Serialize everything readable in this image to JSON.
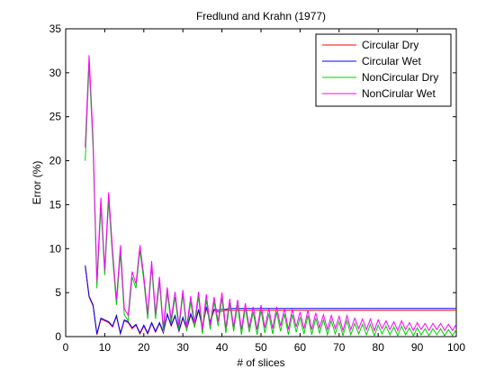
{
  "chart_data": {
    "type": "line",
    "title": "Fredlund and Krahn (1977)",
    "xlabel": "# of slices",
    "ylabel": "Error (%)",
    "xlim": [
      0,
      100
    ],
    "ylim": [
      0,
      35
    ],
    "xticks": [
      0,
      10,
      20,
      30,
      40,
      50,
      60,
      70,
      80,
      90,
      100
    ],
    "yticks": [
      0,
      5,
      10,
      15,
      20,
      25,
      30,
      35
    ],
    "grid": false,
    "legend_position": "top-right",
    "x": [
      5,
      6,
      7,
      8,
      9,
      10,
      11,
      12,
      13,
      14,
      15,
      16,
      17,
      18,
      19,
      20,
      21,
      22,
      23,
      24,
      25,
      26,
      27,
      28,
      29,
      30,
      31,
      32,
      33,
      34,
      35,
      36,
      37,
      38,
      39,
      40,
      41,
      42,
      43,
      44,
      45,
      46,
      47,
      48,
      49,
      50,
      51,
      52,
      53,
      54,
      55,
      56,
      57,
      58,
      59,
      60,
      61,
      62,
      63,
      64,
      65,
      66,
      67,
      68,
      69,
      70,
      71,
      72,
      73,
      74,
      75,
      76,
      77,
      78,
      79,
      80,
      81,
      82,
      83,
      84,
      85,
      86,
      87,
      88,
      89,
      90,
      91,
      92,
      93,
      94,
      95,
      96,
      97,
      98,
      99,
      100
    ],
    "series": [
      {
        "name": "Circular Dry",
        "color": "#ff0000",
        "values": [
          8.0,
          4.5,
          3.5,
          0.2,
          2.0,
          1.8,
          1.6,
          1.1,
          2.3,
          0.3,
          1.8,
          1.6,
          0.9,
          1.3,
          0.3,
          1.2,
          0.3,
          1.5,
          0.5,
          1.5,
          0.4,
          2.5,
          1.2,
          2.3,
          0.6,
          2.1,
          0.8,
          2.5,
          1.2,
          3.0,
          0.9,
          3.3,
          1.6,
          3.0,
          2.8,
          2.9,
          3.0,
          3.0,
          3.0,
          3.0,
          3.0,
          3.0,
          3.0,
          3.0,
          3.0,
          3.0,
          3.0,
          3.0,
          3.0,
          3.0,
          3.0,
          3.0,
          3.0,
          3.0,
          3.0,
          3.0,
          3.0,
          3.0,
          3.0,
          3.0,
          3.0,
          3.0,
          3.0,
          3.0,
          3.0,
          3.0,
          3.0,
          3.0,
          3.0,
          3.0,
          3.0,
          3.0,
          3.0,
          3.0,
          3.0,
          3.0,
          3.0,
          3.0,
          3.0,
          3.0,
          3.0,
          3.0,
          3.0,
          3.0,
          3.0,
          3.0,
          3.0,
          3.0,
          3.0,
          3.0,
          3.0,
          3.0,
          3.0,
          3.0,
          3.0,
          3.0
        ]
      },
      {
        "name": "Circular Wet",
        "color": "#0000ff",
        "values": [
          8.1,
          4.6,
          3.6,
          0.3,
          2.1,
          1.9,
          1.7,
          1.2,
          2.4,
          0.4,
          1.9,
          1.7,
          1.0,
          1.4,
          0.4,
          1.3,
          0.4,
          1.6,
          0.6,
          1.6,
          0.5,
          2.6,
          1.3,
          2.4,
          0.7,
          2.2,
          0.9,
          2.6,
          1.3,
          3.1,
          1.0,
          3.4,
          1.7,
          3.1,
          3.0,
          3.1,
          3.1,
          3.2,
          3.2,
          3.2,
          3.2,
          3.2,
          3.2,
          3.2,
          3.2,
          3.2,
          3.2,
          3.2,
          3.2,
          3.2,
          3.2,
          3.2,
          3.2,
          3.2,
          3.2,
          3.2,
          3.2,
          3.2,
          3.2,
          3.2,
          3.2,
          3.2,
          3.2,
          3.2,
          3.2,
          3.2,
          3.2,
          3.2,
          3.2,
          3.2,
          3.2,
          3.2,
          3.2,
          3.2,
          3.2,
          3.2,
          3.2,
          3.2,
          3.2,
          3.2,
          3.2,
          3.2,
          3.2,
          3.2,
          3.2,
          3.2,
          3.2,
          3.2,
          3.2,
          3.2,
          3.2,
          3.2,
          3.2,
          3.2,
          3.2,
          3.2
        ]
      },
      {
        "name": "NonCircular Dry",
        "color": "#00cc00",
        "values": [
          20.0,
          31.0,
          21.5,
          5.5,
          14.8,
          7.0,
          15.5,
          9.0,
          3.6,
          9.5,
          2.5,
          1.8,
          6.8,
          5.5,
          9.8,
          6.3,
          2.0,
          8.0,
          2.0,
          6.2,
          0.5,
          5.0,
          1.5,
          4.5,
          0.8,
          4.8,
          0.6,
          4.0,
          1.0,
          4.6,
          0.3,
          4.2,
          0.8,
          4.0,
          1.2,
          4.4,
          0.4,
          3.8,
          0.6,
          3.6,
          0.2,
          3.3,
          0.5,
          2.8,
          0.2,
          3.0,
          0.4,
          2.6,
          0.3,
          2.8,
          0.6,
          2.6,
          0.2,
          2.5,
          0.5,
          2.2,
          0.3,
          2.4,
          0.2,
          2.1,
          0.4,
          1.9,
          0.2,
          1.8,
          0.3,
          1.7,
          0.1,
          1.8,
          0.2,
          1.5,
          0.3,
          1.4,
          0.2,
          1.4,
          0.1,
          1.3,
          0.3,
          1.2,
          0.2,
          1.1,
          0.1,
          1.2,
          0.2,
          1.0,
          0.1,
          1.0,
          0.2,
          0.9,
          0.1,
          0.9,
          0.2,
          0.9,
          0.1,
          0.8,
          0.1,
          0.8
        ]
      },
      {
        "name": "NonCirular Wet",
        "color": "#ff00ff",
        "values": [
          21.5,
          32.0,
          22.5,
          6.3,
          15.8,
          7.6,
          16.4,
          9.8,
          4.2,
          10.4,
          3.2,
          2.4,
          7.4,
          6.0,
          10.4,
          6.9,
          2.6,
          8.6,
          2.6,
          6.8,
          1.0,
          5.6,
          2.0,
          5.1,
          1.3,
          5.3,
          1.1,
          4.6,
          1.5,
          5.1,
          0.8,
          4.8,
          1.3,
          4.5,
          1.7,
          5.0,
          1.0,
          4.3,
          1.1,
          4.2,
          0.8,
          3.8,
          1.0,
          3.4,
          0.8,
          3.6,
          1.0,
          3.2,
          0.9,
          3.4,
          1.2,
          3.2,
          0.8,
          3.1,
          1.1,
          2.8,
          0.9,
          3.0,
          0.8,
          2.7,
          1.0,
          2.5,
          0.8,
          2.4,
          0.9,
          2.3,
          0.7,
          2.4,
          0.8,
          2.1,
          0.9,
          2.0,
          0.8,
          2.0,
          0.7,
          1.9,
          0.9,
          1.8,
          0.8,
          1.7,
          0.7,
          1.8,
          0.8,
          1.6,
          0.7,
          1.6,
          0.8,
          1.5,
          0.7,
          1.5,
          0.8,
          1.5,
          0.7,
          1.4,
          0.7,
          1.4
        ]
      }
    ]
  }
}
